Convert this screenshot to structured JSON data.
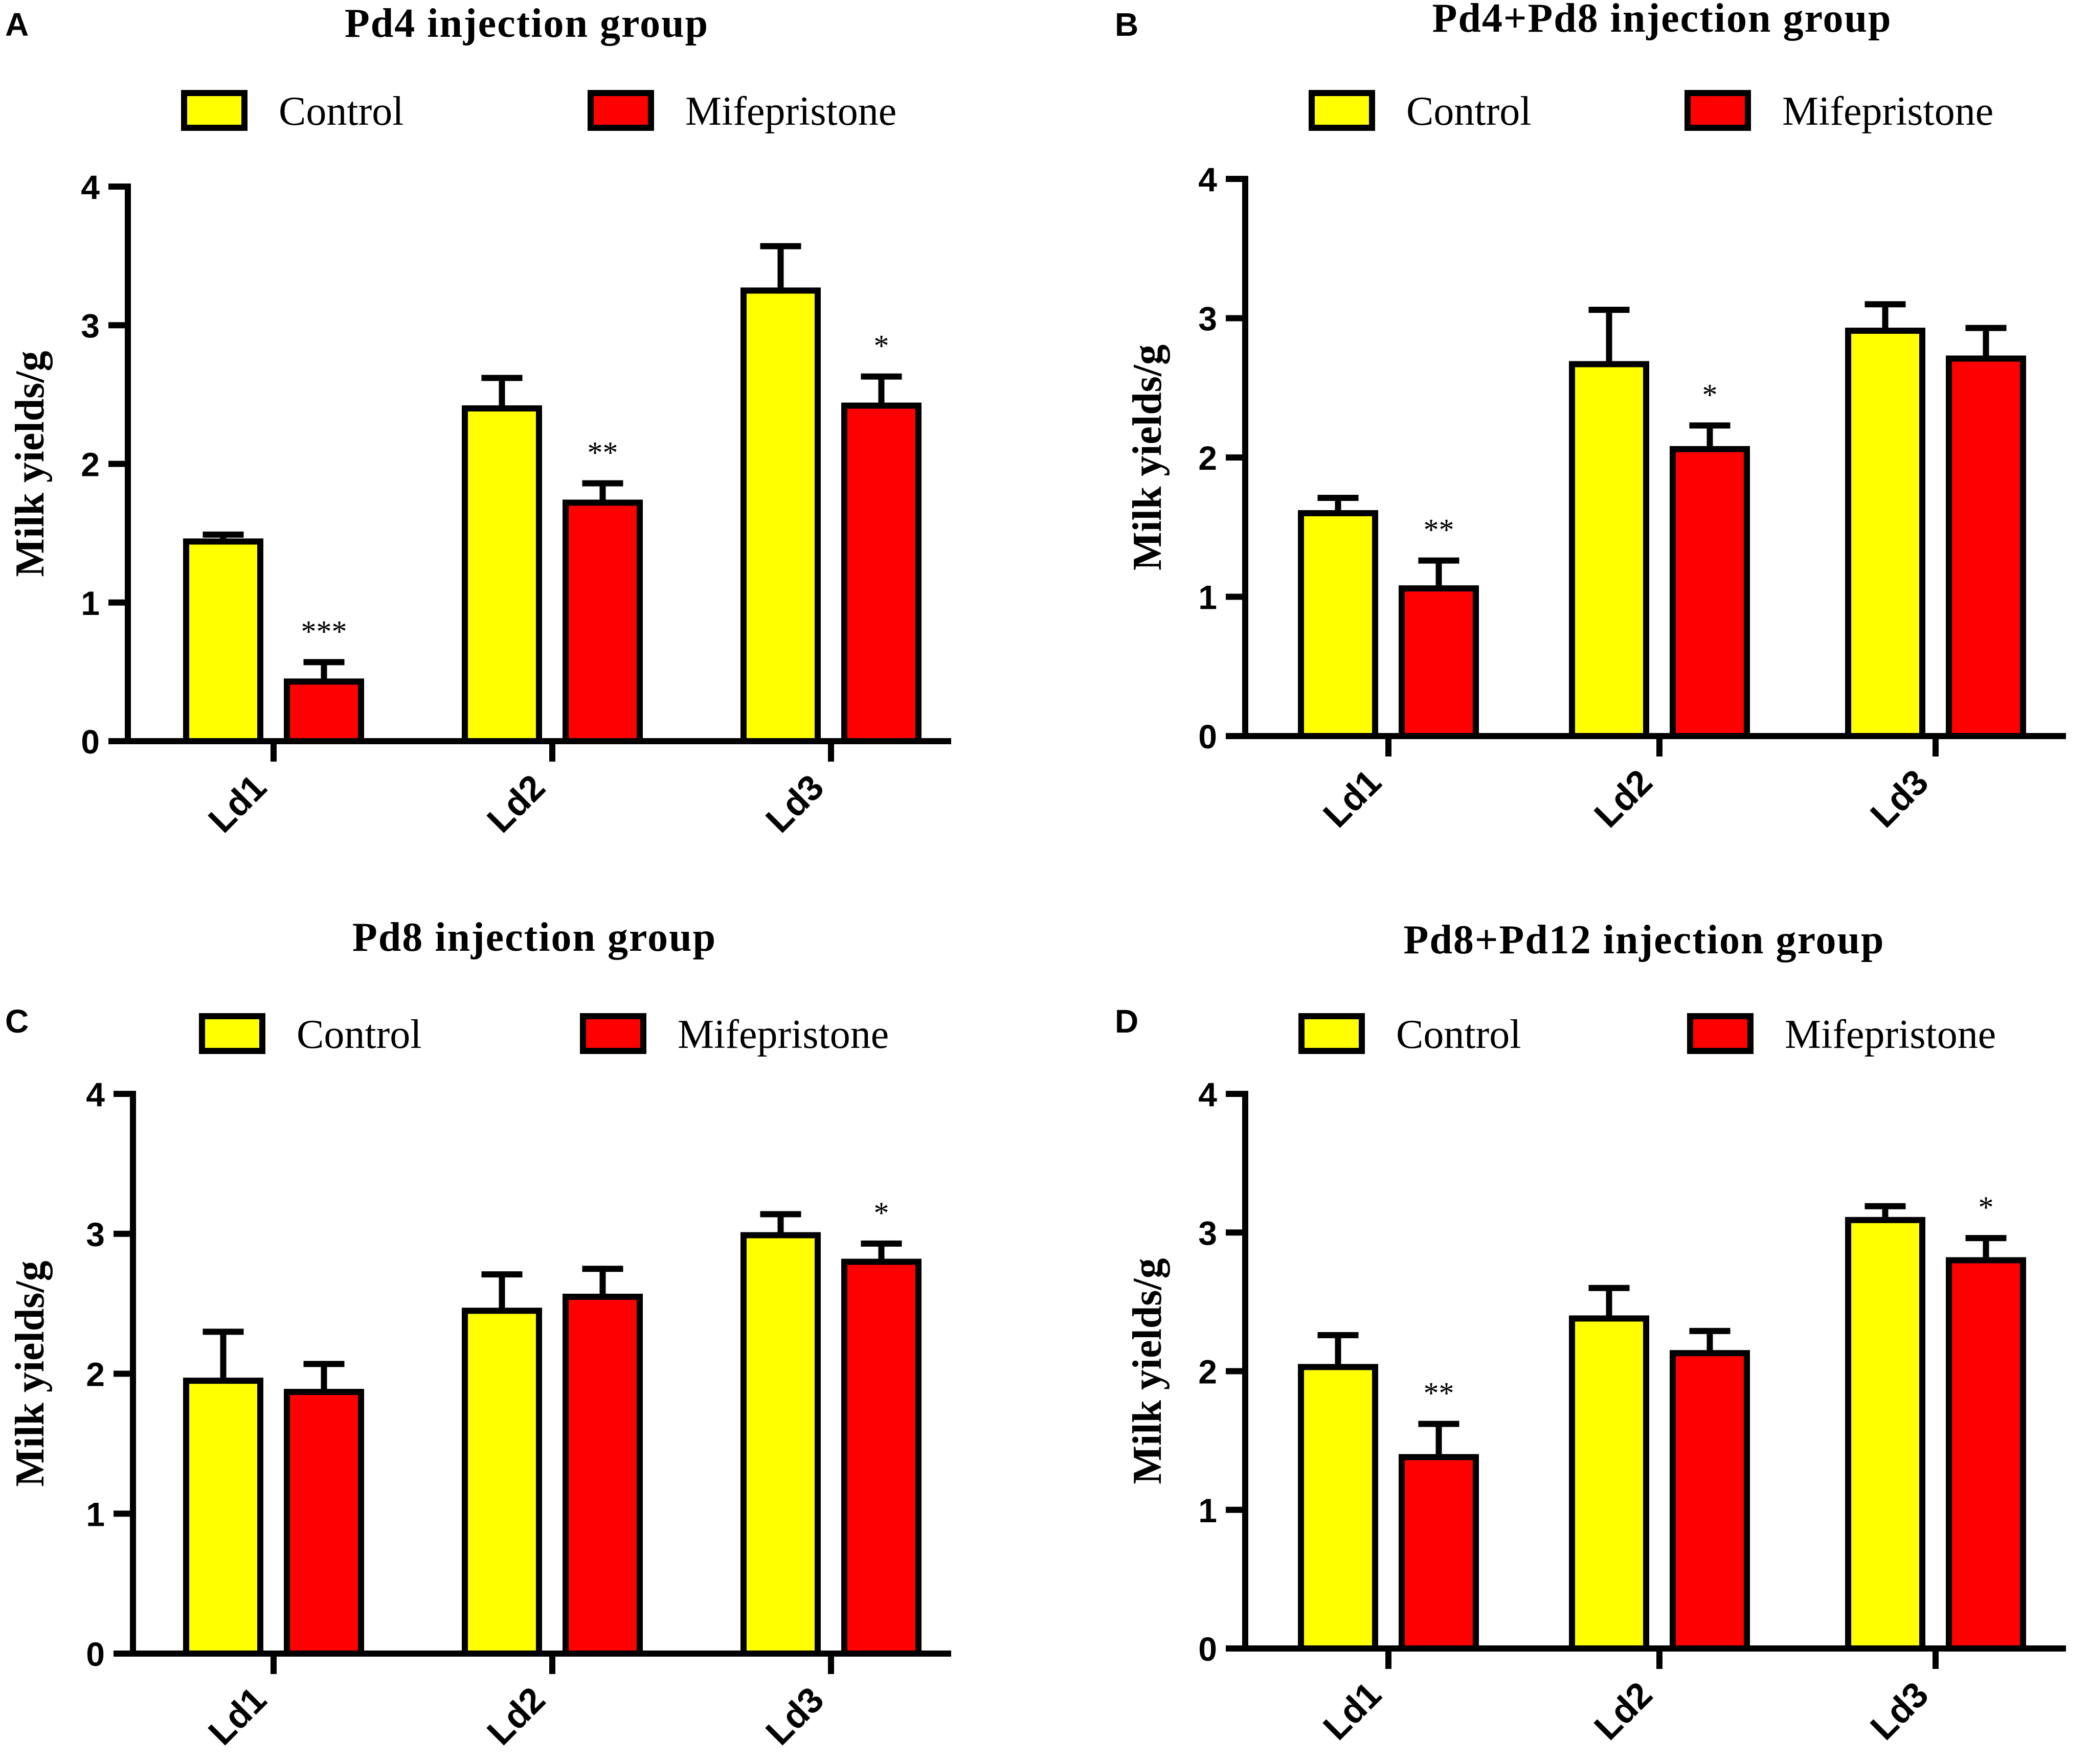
{
  "colors": {
    "control": "#FFFF00",
    "mifepristone": "#FF0000",
    "axis": "#000000"
  },
  "chart_data": [
    {
      "panel": "A",
      "type": "bar",
      "title": "Pd4 injection group",
      "ylabel": "Milk yields/g",
      "xlabel": "",
      "ylim": [
        0,
        4
      ],
      "yticks": [
        "0",
        "1",
        "2",
        "3",
        "4"
      ],
      "categories": [
        "Ld1",
        "Ld2",
        "Ld3"
      ],
      "series": [
        {
          "name": "Control",
          "color_key": "control",
          "values": [
            1.44,
            2.4,
            3.25
          ],
          "errors": [
            0.05,
            0.22,
            0.32
          ],
          "sig": [
            "",
            "",
            ""
          ]
        },
        {
          "name": "Mifepristone",
          "color_key": "mifepristone",
          "values": [
            0.43,
            1.72,
            2.42
          ],
          "errors": [
            0.14,
            0.14,
            0.21
          ],
          "sig": [
            "***",
            "**",
            "*"
          ]
        }
      ]
    },
    {
      "panel": "B",
      "type": "bar",
      "title": "Pd4+Pd8 injection group",
      "ylabel": "Milk yields/g",
      "xlabel": "",
      "ylim": [
        0,
        4
      ],
      "yticks": [
        "0",
        "1",
        "2",
        "3",
        "4"
      ],
      "categories": [
        "Ld1",
        "Ld2",
        "Ld3"
      ],
      "series": [
        {
          "name": "Control",
          "color_key": "control",
          "values": [
            1.6,
            2.67,
            2.91
          ],
          "errors": [
            0.11,
            0.39,
            0.19
          ],
          "sig": [
            "",
            "",
            ""
          ]
        },
        {
          "name": "Mifepristone",
          "color_key": "mifepristone",
          "values": [
            1.06,
            2.06,
            2.71
          ],
          "errors": [
            0.2,
            0.17,
            0.22
          ],
          "sig": [
            "**",
            "*",
            ""
          ]
        }
      ]
    },
    {
      "panel": "C",
      "type": "bar",
      "title": "Pd8 injection group",
      "ylabel": "Milk yields/g",
      "xlabel": "",
      "ylim": [
        0,
        4
      ],
      "yticks": [
        "0",
        "1",
        "2",
        "3",
        "4"
      ],
      "categories": [
        "Ld1",
        "Ld2",
        "Ld3"
      ],
      "series": [
        {
          "name": "Control",
          "color_key": "control",
          "values": [
            1.95,
            2.45,
            2.99
          ],
          "errors": [
            0.35,
            0.26,
            0.15
          ],
          "sig": [
            "",
            "",
            ""
          ]
        },
        {
          "name": "Mifepristone",
          "color_key": "mifepristone",
          "values": [
            1.87,
            2.55,
            2.8
          ],
          "errors": [
            0.2,
            0.2,
            0.13
          ],
          "sig": [
            "",
            "",
            "*"
          ]
        }
      ]
    },
    {
      "panel": "D",
      "type": "bar",
      "title": "Pd8+Pd12 injection group",
      "ylabel": "Milk yields/g",
      "xlabel": "",
      "ylim": [
        0,
        4
      ],
      "yticks": [
        "0",
        "1",
        "2",
        "3",
        "4"
      ],
      "categories": [
        "Ld1",
        "Ld2",
        "Ld3"
      ],
      "series": [
        {
          "name": "Control",
          "color_key": "control",
          "values": [
            2.03,
            2.38,
            3.09
          ],
          "errors": [
            0.23,
            0.22,
            0.1
          ],
          "sig": [
            "",
            "",
            ""
          ]
        },
        {
          "name": "Mifepristone",
          "color_key": "mifepristone",
          "values": [
            1.38,
            2.13,
            2.8
          ],
          "errors": [
            0.24,
            0.16,
            0.16
          ],
          "sig": [
            "**",
            "",
            "*"
          ]
        }
      ]
    }
  ]
}
